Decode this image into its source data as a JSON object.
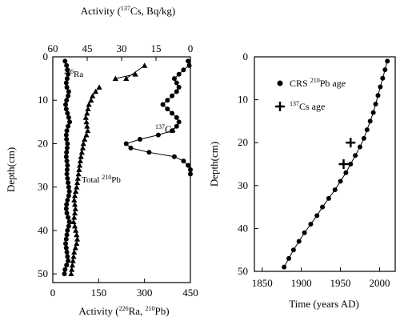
{
  "chart_data": [
    {
      "type": "line",
      "x_axis_top": {
        "label_prefix": "Activity (",
        "label_sup": "137",
        "label_suffix": "Cs, Bq/kg)",
        "ticks": [
          60,
          45,
          30,
          15,
          0
        ],
        "range": [
          60,
          0
        ]
      },
      "x_axis_bottom": {
        "label_prefix": "Activity (",
        "label_sup1": "226",
        "label_mid": "Ra, ",
        "label_sup2": "210",
        "label_suffix": "Pb)",
        "ticks": [
          0,
          150,
          300,
          450
        ],
        "range": [
          0,
          450
        ]
      },
      "y_axis": {
        "label": "Depth(cm)",
        "ticks": [
          0,
          10,
          20,
          30,
          40,
          50
        ],
        "range": [
          0,
          52
        ]
      },
      "annotations": {
        "ra_sup": "226",
        "ra_text": "Ra",
        "pb_text": "Total ",
        "pb_sup": "210",
        "pb_text2": "Pb",
        "cs_sup": "137",
        "cs_text": "Cs"
      },
      "series": [
        {
          "marker": "circle",
          "axis": "bottom",
          "points": [
            [
              40,
              1
            ],
            [
              45,
              2
            ],
            [
              48,
              3
            ],
            [
              50,
              4
            ],
            [
              47,
              5
            ],
            [
              44,
              6
            ],
            [
              46,
              7
            ],
            [
              52,
              8
            ],
            [
              50,
              9
            ],
            [
              45,
              10
            ],
            [
              42,
              11
            ],
            [
              44,
              12
            ],
            [
              48,
              13
            ],
            [
              52,
              14
            ],
            [
              55,
              15
            ],
            [
              50,
              16
            ],
            [
              46,
              17
            ],
            [
              44,
              18
            ],
            [
              45,
              19
            ],
            [
              48,
              20
            ],
            [
              47,
              21
            ],
            [
              45,
              22
            ],
            [
              44,
              23
            ],
            [
              46,
              24
            ],
            [
              48,
              25
            ],
            [
              47,
              26
            ],
            [
              46,
              27
            ],
            [
              48,
              28
            ],
            [
              50,
              29
            ],
            [
              52,
              30
            ],
            [
              54,
              31
            ],
            [
              52,
              32
            ],
            [
              48,
              33
            ],
            [
              45,
              34
            ],
            [
              44,
              35
            ],
            [
              46,
              36
            ],
            [
              50,
              37
            ],
            [
              54,
              38
            ],
            [
              52,
              39
            ],
            [
              48,
              40
            ],
            [
              46,
              41
            ],
            [
              44,
              42
            ],
            [
              42,
              43
            ],
            [
              44,
              44
            ],
            [
              46,
              45
            ],
            [
              48,
              46
            ],
            [
              50,
              47
            ],
            [
              45,
              48
            ],
            [
              40,
              49
            ],
            [
              38,
              50
            ]
          ]
        },
        {
          "marker": "triangle",
          "axis": "bottom",
          "points": [
            [
              152,
              7
            ],
            [
              140,
              8
            ],
            [
              130,
              9
            ],
            [
              125,
              10
            ],
            [
              118,
              11
            ],
            [
              115,
              12
            ],
            [
              112,
              13
            ],
            [
              108,
              14
            ],
            [
              110,
              15
            ],
            [
              112,
              16
            ],
            [
              114,
              17
            ],
            [
              110,
              18
            ],
            [
              104,
              19
            ],
            [
              100,
              20
            ],
            [
              98,
              21
            ],
            [
              95,
              22
            ],
            [
              92,
              23
            ],
            [
              90,
              24
            ],
            [
              88,
              25
            ],
            [
              86,
              26
            ],
            [
              84,
              27
            ],
            [
              82,
              28
            ],
            [
              80,
              29
            ],
            [
              78,
              30
            ],
            [
              75,
              31
            ],
            [
              72,
              32
            ],
            [
              70,
              33
            ],
            [
              72,
              34
            ],
            [
              74,
              35
            ],
            [
              72,
              36
            ],
            [
              70,
              37
            ],
            [
              68,
              38
            ],
            [
              72,
              39
            ],
            [
              75,
              40
            ],
            [
              78,
              41
            ],
            [
              80,
              42
            ],
            [
              78,
              43
            ],
            [
              74,
              44
            ],
            [
              70,
              45
            ],
            [
              68,
              46
            ],
            [
              66,
              47
            ],
            [
              64,
              48
            ],
            [
              62,
              49
            ],
            [
              60,
              50
            ]
          ]
        },
        {
          "marker": "triangle",
          "axis": "bottom",
          "points": [
            [
              240,
              5
            ],
            [
              300,
              2
            ]
          ]
        },
        {
          "marker": "triangle",
          "axis": "bottom",
          "points": [
            [
              205,
              5
            ],
            [
              270,
              4
            ]
          ]
        },
        {
          "marker": "circle",
          "axis": "top",
          "points": [
            [
              1,
              1
            ],
            [
              0.5,
              2
            ],
            [
              3,
              3
            ],
            [
              5,
              4
            ],
            [
              7,
              5
            ],
            [
              6,
              6
            ],
            [
              5,
              7
            ],
            [
              6,
              8
            ],
            [
              8,
              9
            ],
            [
              10,
              10
            ],
            [
              12,
              11
            ],
            [
              10,
              12
            ],
            [
              8,
              13
            ],
            [
              6,
              14
            ],
            [
              5,
              15
            ],
            [
              6,
              16
            ],
            [
              8,
              17
            ],
            [
              14,
              18
            ],
            [
              22,
              19
            ],
            [
              28,
              20
            ],
            [
              26,
              21
            ],
            [
              18,
              22
            ],
            [
              7,
              23
            ],
            [
              3,
              24
            ],
            [
              1,
              25
            ],
            [
              0,
              26
            ],
            [
              0,
              27
            ]
          ]
        }
      ]
    },
    {
      "type": "line",
      "x_axis": {
        "label": "Time (years AD)",
        "ticks": [
          1850,
          1900,
          1950,
          2000
        ],
        "range": [
          1840,
          2020
        ]
      },
      "y_axis": {
        "label": "Depth(cm)",
        "ticks": [
          0,
          10,
          20,
          30,
          40,
          50
        ],
        "range": [
          0,
          50
        ]
      },
      "legend": [
        {
          "marker": "circle",
          "text_prefix": "CRS ",
          "sup": "210",
          "text_suffix": "Pb age"
        },
        {
          "marker": "plus",
          "sup": "137",
          "text_suffix": "Cs age"
        }
      ],
      "series": [
        {
          "marker": "circle",
          "points": [
            [
              2010,
              1
            ],
            [
              2007,
              3
            ],
            [
              2004,
              5
            ],
            [
              2001,
              7
            ],
            [
              1998,
              9
            ],
            [
              1995,
              11
            ],
            [
              1992,
              13
            ],
            [
              1988,
              15
            ],
            [
              1984,
              17
            ],
            [
              1980,
              19
            ],
            [
              1975,
              21
            ],
            [
              1969,
              23
            ],
            [
              1963,
              25
            ],
            [
              1957,
              27
            ],
            [
              1950,
              29
            ],
            [
              1943,
              31
            ],
            [
              1935,
              33
            ],
            [
              1927,
              35
            ],
            [
              1920,
              37
            ],
            [
              1912,
              39
            ],
            [
              1904,
              41
            ],
            [
              1897,
              43
            ],
            [
              1890,
              45
            ],
            [
              1884,
              47
            ],
            [
              1878,
              49
            ]
          ]
        },
        {
          "marker": "plus",
          "points": [
            [
              1963,
              20
            ],
            [
              1954,
              25
            ]
          ]
        }
      ]
    }
  ]
}
